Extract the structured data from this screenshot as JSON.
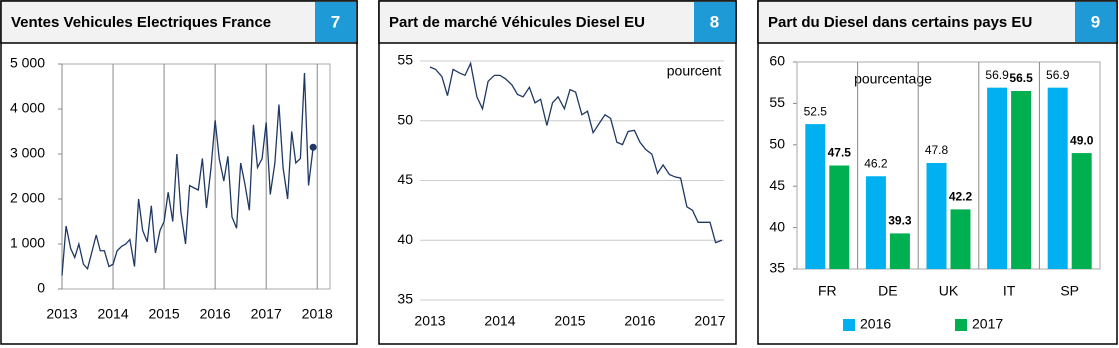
{
  "chart_data": [
    {
      "type": "line",
      "panel_number": 7,
      "title": "Ventes Vehicules Electriques France",
      "x": [
        2013.0,
        2013.08,
        2013.17,
        2013.25,
        2013.33,
        2013.42,
        2013.5,
        2013.58,
        2013.67,
        2013.75,
        2013.83,
        2013.92,
        2014.0,
        2014.08,
        2014.17,
        2014.25,
        2014.33,
        2014.42,
        2014.5,
        2014.58,
        2014.67,
        2014.75,
        2014.83,
        2014.92,
        2015.0,
        2015.08,
        2015.17,
        2015.25,
        2015.33,
        2015.42,
        2015.5,
        2015.58,
        2015.67,
        2015.75,
        2015.83,
        2015.92,
        2016.0,
        2016.08,
        2016.17,
        2016.25,
        2016.33,
        2016.42,
        2016.5,
        2016.58,
        2016.67,
        2016.75,
        2016.83,
        2016.92,
        2017.0,
        2017.08,
        2017.17,
        2017.25,
        2017.33,
        2017.42,
        2017.5,
        2017.58,
        2017.67,
        2017.75,
        2017.83,
        2017.92
      ],
      "series": [
        {
          "color": "#1f3864",
          "values": [
            300,
            1400,
            900,
            700,
            1000,
            550,
            450,
            800,
            1200,
            850,
            850,
            500,
            550,
            850,
            950,
            1000,
            1100,
            500,
            2000,
            1300,
            1050,
            1850,
            800,
            1300,
            1500,
            2150,
            1500,
            3000,
            1700,
            1000,
            2300,
            2250,
            2200,
            2900,
            1800,
            2700,
            3750,
            2900,
            2400,
            2950,
            1600,
            1350,
            2800,
            2350,
            1750,
            3650,
            2700,
            2900,
            3700,
            2100,
            2800,
            4100,
            2700,
            2000,
            3500,
            2800,
            2900,
            4800,
            2300,
            3150
          ]
        }
      ],
      "end_marker": true,
      "xlim": [
        2013,
        2018.25
      ],
      "xticks": [
        2013,
        2014,
        2015,
        2016,
        2017,
        2018
      ],
      "ylim": [
        0,
        5000
      ],
      "yticks": [
        0,
        {
          "value": 1000,
          "label": "1 000"
        },
        {
          "value": 2000,
          "label": "2 000"
        },
        {
          "value": 3000,
          "label": "3 000"
        },
        {
          "value": 4000,
          "label": "4 000"
        },
        {
          "value": 5000,
          "label": "5 000"
        }
      ],
      "grid": "x"
    },
    {
      "type": "line",
      "panel_number": 8,
      "title": "Part de marché Véhicules Diesel EU",
      "annotation": "pourcent",
      "x": [
        2013.0,
        2013.08,
        2013.17,
        2013.25,
        2013.33,
        2013.42,
        2013.5,
        2013.58,
        2013.67,
        2013.75,
        2013.83,
        2013.92,
        2014.0,
        2014.08,
        2014.17,
        2014.25,
        2014.33,
        2014.42,
        2014.5,
        2014.58,
        2014.67,
        2014.75,
        2014.83,
        2014.92,
        2015.0,
        2015.08,
        2015.17,
        2015.25,
        2015.33,
        2015.42,
        2015.5,
        2015.58,
        2015.67,
        2015.75,
        2015.83,
        2015.92,
        2016.0,
        2016.08,
        2016.17,
        2016.25,
        2016.33,
        2016.42,
        2016.5,
        2016.58,
        2016.67,
        2016.75,
        2016.83,
        2016.92,
        2017.0,
        2017.08,
        2017.17
      ],
      "series": [
        {
          "color": "#1f3864",
          "values": [
            54.5,
            54.3,
            53.7,
            52.1,
            54.3,
            54.0,
            53.8,
            54.8,
            52.0,
            51.0,
            53.3,
            53.8,
            53.8,
            53.5,
            53.0,
            52.2,
            52.0,
            52.8,
            51.5,
            51.8,
            49.6,
            51.5,
            52.0,
            51.0,
            52.6,
            52.4,
            50.5,
            50.8,
            49.0,
            49.8,
            50.5,
            50.2,
            48.2,
            48.0,
            49.1,
            49.2,
            48.2,
            47.6,
            47.2,
            45.6,
            46.3,
            45.5,
            45.3,
            45.2,
            42.8,
            42.5,
            41.5,
            41.5,
            41.5,
            39.8,
            40.0
          ]
        }
      ],
      "end_marker": false,
      "xlim": [
        2013,
        2017.2
      ],
      "xticks": [
        2013,
        2014,
        2015,
        2016,
        2017
      ],
      "ylim": [
        35,
        55
      ],
      "yticks": [
        35,
        40,
        45,
        50,
        55
      ],
      "grid": "y"
    },
    {
      "type": "bar",
      "panel_number": 9,
      "title": "Part du Diesel dans certains pays EU",
      "annotation": "pourcentage",
      "categories": [
        "FR",
        "DE",
        "UK",
        "IT",
        "SP"
      ],
      "series": [
        {
          "name": "2016",
          "color": "#00b0f0",
          "values": [
            52.5,
            46.2,
            47.8,
            56.9,
            56.9
          ]
        },
        {
          "name": "2017",
          "color": "#00b050",
          "values": [
            47.5,
            39.3,
            42.2,
            56.5,
            49.0
          ],
          "value_labels": [
            "47.5",
            "39.3",
            "42.2",
            "56.5",
            "49.0"
          ]
        }
      ],
      "ylim": [
        35,
        60
      ],
      "yticks": [
        35,
        40,
        45,
        50,
        55,
        60
      ],
      "grid": "x",
      "legend": "bottom"
    }
  ]
}
